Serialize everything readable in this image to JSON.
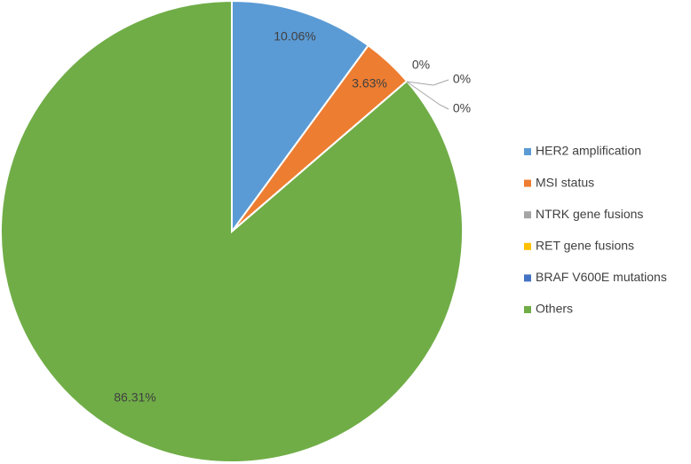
{
  "chart_data": {
    "type": "pie",
    "categories": [
      "HER2 amplification",
      "MSI status",
      "NTRK gene fusions",
      "RET gene fusions",
      "BRAF V600E mutations",
      "Others"
    ],
    "values": [
      10.06,
      3.63,
      0,
      0,
      0,
      86.31
    ],
    "value_labels": [
      "10.06%",
      "3.63%",
      "0%",
      "0%",
      "0%",
      "86.31%"
    ],
    "colors": [
      "#5b9bd5",
      "#ed7d31",
      "#a5a5a5",
      "#ffc000",
      "#4472c4",
      "#70ad47"
    ],
    "legend": "right"
  }
}
